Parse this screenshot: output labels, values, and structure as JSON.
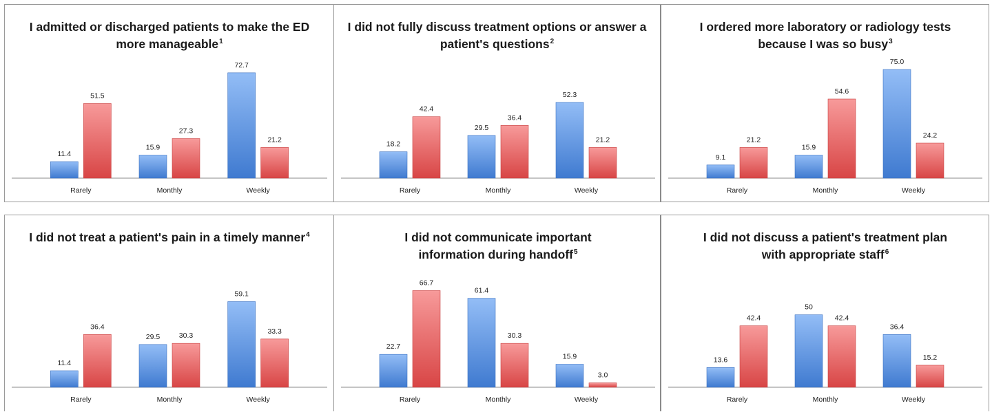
{
  "colors": {
    "series_a": "#5c8fd6",
    "series_b": "#e06464"
  },
  "chart_data": [
    {
      "type": "bar",
      "title": "I admitted or discharged patients to make the ED more manageable",
      "footnote": "1",
      "categories": [
        "Rarely",
        "Monthly",
        "Weekly"
      ],
      "series": [
        {
          "values": [
            11.4,
            15.9,
            72.7
          ],
          "labels": [
            "11.4",
            "15.9",
            "72.7"
          ]
        },
        {
          "values": [
            51.5,
            27.3,
            21.2
          ],
          "labels": [
            "51.5",
            "27.3",
            "21.2"
          ]
        }
      ]
    },
    {
      "type": "bar",
      "title": "I did not fully discuss treatment options or answer a patient's questions",
      "footnote": "2",
      "categories": [
        "Rarely",
        "Monthly",
        "Weekly"
      ],
      "series": [
        {
          "values": [
            18.2,
            29.5,
            52.3
          ],
          "labels": [
            "18.2",
            "29.5",
            "52.3"
          ]
        },
        {
          "values": [
            42.4,
            36.4,
            21.2
          ],
          "labels": [
            "42.4",
            "36.4",
            "21.2"
          ]
        }
      ]
    },
    {
      "type": "bar",
      "title": "I ordered more laboratory or radiology tests because I was so busy",
      "footnote": "3",
      "categories": [
        "Rarely",
        "Monthly",
        "Weekly"
      ],
      "series": [
        {
          "values": [
            9.1,
            15.9,
            75.0
          ],
          "labels": [
            "9.1",
            "15.9",
            "75.0"
          ]
        },
        {
          "values": [
            21.2,
            54.6,
            24.2
          ],
          "labels": [
            "21.2",
            "54.6",
            "24.2"
          ]
        }
      ]
    },
    {
      "type": "bar",
      "title": "I did not treat a patient's pain in a timely manner",
      "footnote": "4",
      "categories": [
        "Rarely",
        "Monthly",
        "Weekly"
      ],
      "series": [
        {
          "values": [
            11.4,
            29.5,
            59.1
          ],
          "labels": [
            "11.4",
            "29.5",
            "59.1"
          ]
        },
        {
          "values": [
            36.4,
            30.3,
            33.3
          ],
          "labels": [
            "36.4",
            "30.3",
            "33.3"
          ]
        }
      ]
    },
    {
      "type": "bar",
      "title": "I did not communicate important information during handoff",
      "footnote": "5",
      "categories": [
        "Rarely",
        "Monthly",
        "Weekly"
      ],
      "series": [
        {
          "values": [
            22.7,
            61.4,
            15.9
          ],
          "labels": [
            "22.7",
            "61.4",
            "15.9"
          ]
        },
        {
          "values": [
            66.7,
            30.3,
            3.0
          ],
          "labels": [
            "66.7",
            "30.3",
            "3.0"
          ]
        }
      ]
    },
    {
      "type": "bar",
      "title": "I did not discuss a patient's treatment plan with appropriate staff",
      "footnote": "6",
      "categories": [
        "Rarely",
        "Monthly",
        "Weekly"
      ],
      "series": [
        {
          "values": [
            13.6,
            50,
            36.4
          ],
          "labels": [
            "13.6",
            "50",
            "36.4"
          ]
        },
        {
          "values": [
            42.4,
            42.4,
            15.2
          ],
          "labels": [
            "42.4",
            "42.4",
            "15.2"
          ]
        }
      ]
    }
  ]
}
